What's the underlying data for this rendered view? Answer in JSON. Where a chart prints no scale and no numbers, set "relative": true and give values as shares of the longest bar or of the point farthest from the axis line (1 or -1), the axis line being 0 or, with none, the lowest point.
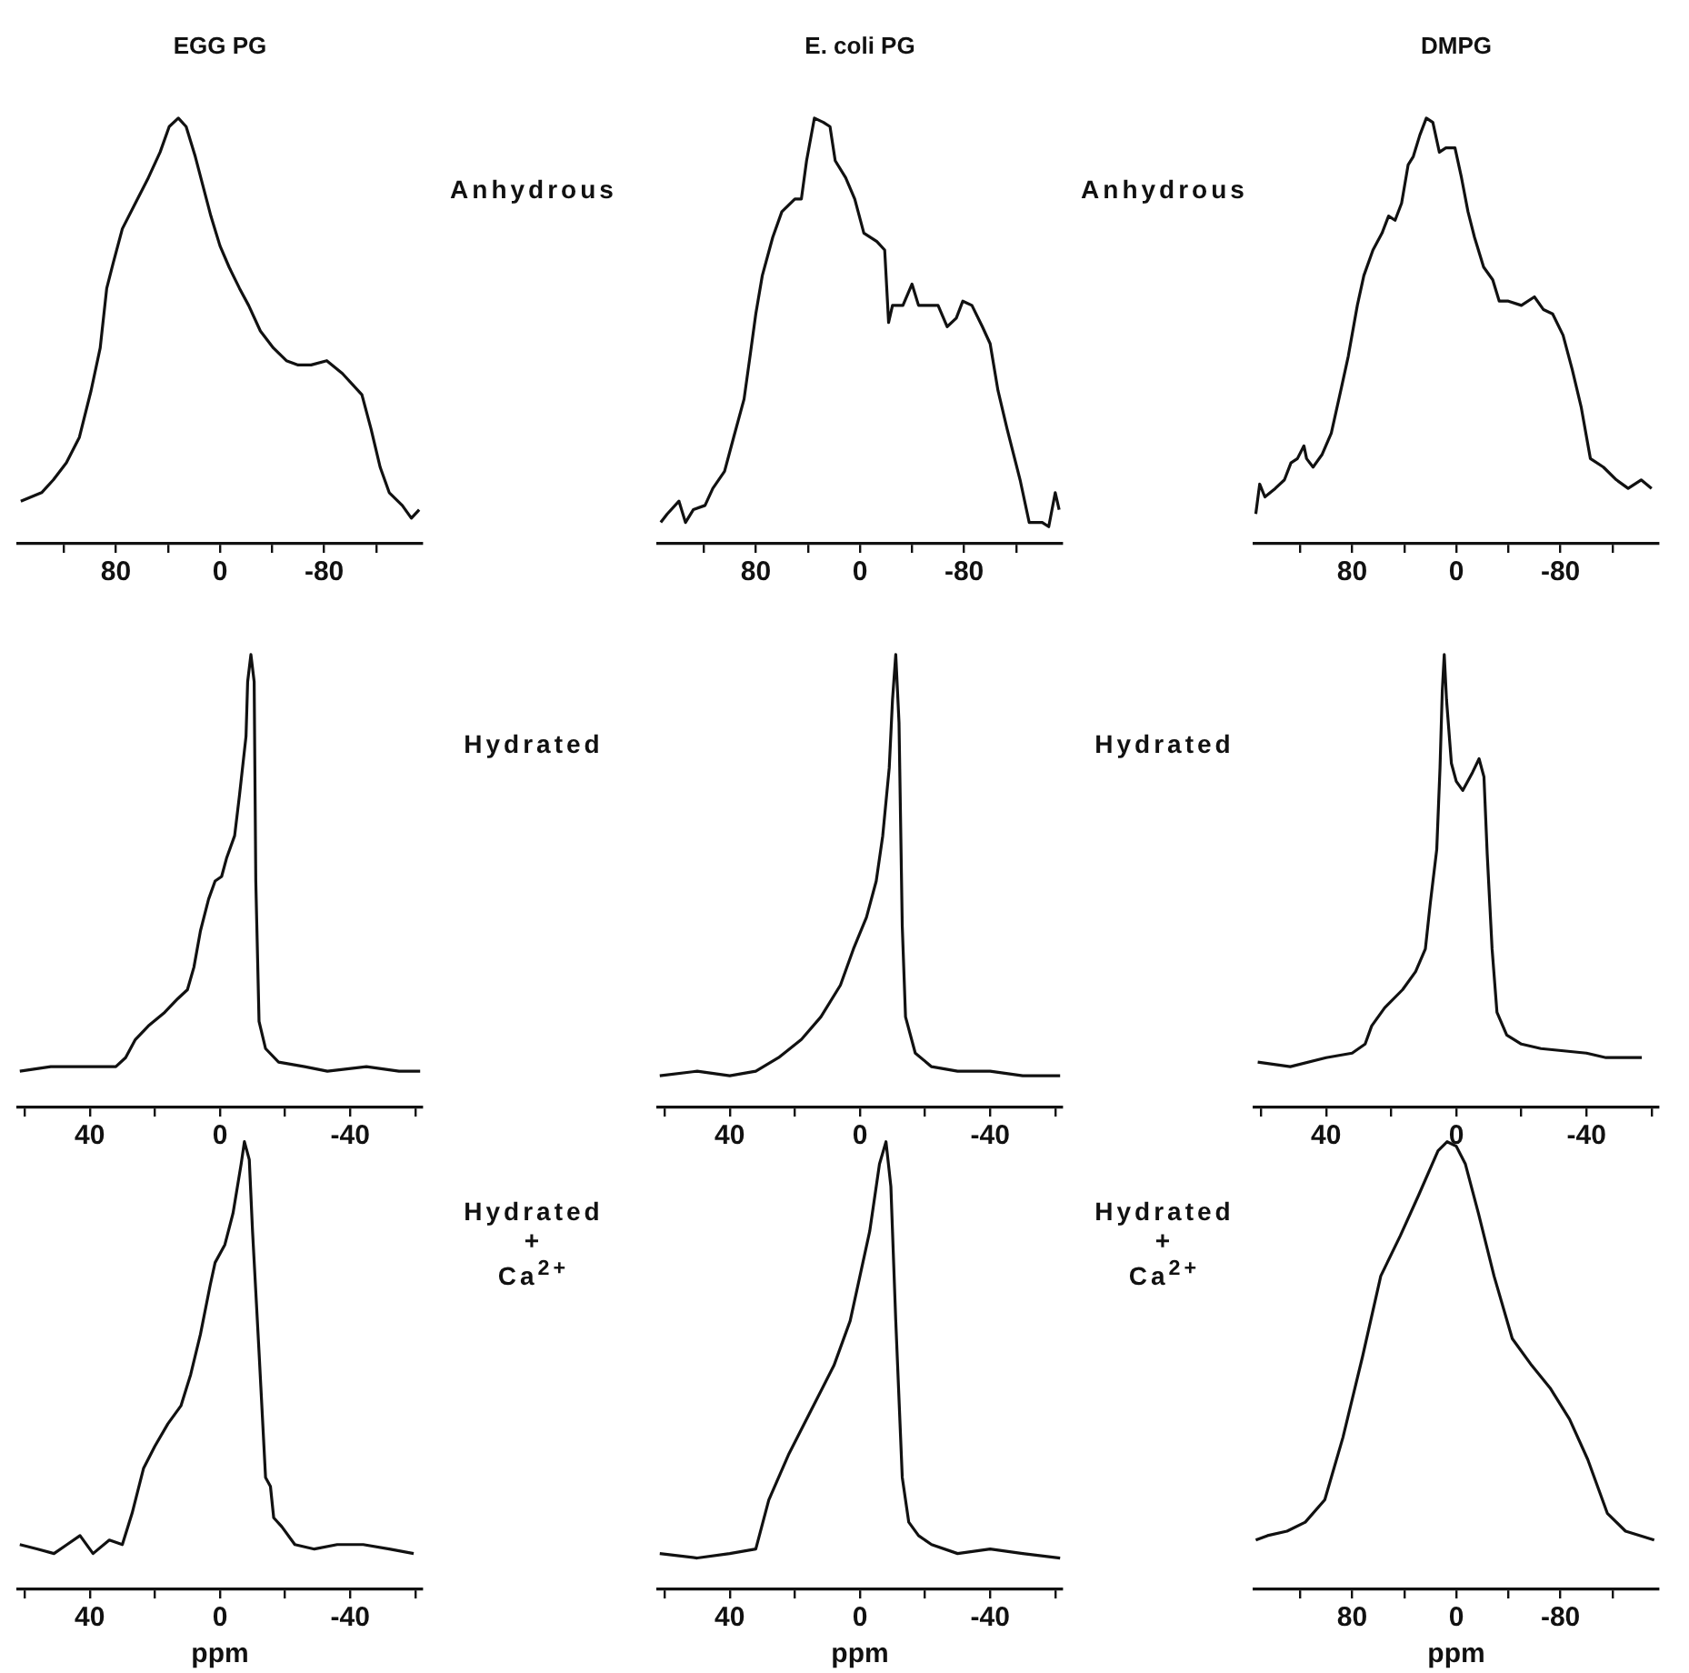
{
  "chart_data": [
    {
      "type": "line",
      "title": "EGG PG",
      "relative": true,
      "marker": "none",
      "xlim": [
        155,
        -155
      ],
      "xticks": [
        {
          "value": 120,
          "label": null
        },
        80,
        {
          "value": 40,
          "label": null
        },
        0,
        {
          "value": -40,
          "label": null
        },
        -80,
        {
          "value": -120,
          "label": null
        }
      ],
      "annotations": [
        "Anhydrous"
      ],
      "x": [
        153,
        137,
        128,
        118,
        108,
        99,
        92,
        87,
        82,
        75,
        65,
        55,
        46,
        39,
        32,
        26,
        19,
        13,
        7,
        0,
        -7,
        -15,
        -22,
        -31,
        -41,
        -51,
        -60,
        -70,
        -82,
        -94,
        -109,
        -116,
        -123,
        -130,
        -140,
        -147,
        -153
      ],
      "series": [
        {
          "color": "#111111",
          "values": [
            0.1,
            0.12,
            0.15,
            0.19,
            0.25,
            0.36,
            0.46,
            0.6,
            0.66,
            0.74,
            0.8,
            0.86,
            0.92,
            0.98,
            1.0,
            0.98,
            0.91,
            0.84,
            0.77,
            0.7,
            0.65,
            0.6,
            0.56,
            0.5,
            0.46,
            0.43,
            0.42,
            0.42,
            0.43,
            0.4,
            0.35,
            0.27,
            0.18,
            0.12,
            0.09,
            0.06,
            0.08
          ]
        }
      ]
    },
    {
      "type": "line",
      "title": "E. coli PG",
      "relative": true,
      "marker": "none",
      "xlim": [
        155,
        -155
      ],
      "xticks": [
        {
          "value": 120,
          "label": null
        },
        80,
        {
          "value": 40,
          "label": null
        },
        0,
        {
          "value": -40,
          "label": null
        },
        -80,
        {
          "value": -120,
          "label": null
        }
      ],
      "annotations": [
        "Anhydrous"
      ],
      "x": [
        153,
        148,
        139,
        134,
        128,
        119,
        113,
        104,
        97,
        89,
        84,
        80,
        75,
        67,
        60,
        50,
        45,
        41,
        35,
        28,
        23,
        19,
        11,
        4,
        -3,
        -13,
        -19,
        -22,
        -25,
        -33,
        -40,
        -45,
        -52,
        -60,
        -67,
        -74,
        -79,
        -86,
        -94,
        -100,
        -106,
        -113,
        -123,
        -130,
        -140,
        -145,
        -150,
        -153
      ],
      "series": [
        {
          "color": "#111111",
          "values": [
            0.05,
            0.07,
            0.1,
            0.05,
            0.08,
            0.09,
            0.13,
            0.17,
            0.25,
            0.34,
            0.45,
            0.54,
            0.63,
            0.72,
            0.78,
            0.81,
            0.81,
            0.9,
            1.0,
            0.99,
            0.98,
            0.9,
            0.86,
            0.81,
            0.73,
            0.71,
            0.69,
            0.52,
            0.56,
            0.56,
            0.61,
            0.56,
            0.56,
            0.56,
            0.51,
            0.53,
            0.57,
            0.56,
            0.51,
            0.47,
            0.36,
            0.27,
            0.15,
            0.05,
            0.05,
            0.04,
            0.12,
            0.08
          ]
        }
      ]
    },
    {
      "type": "line",
      "title": "DMPG",
      "relative": true,
      "marker": "none",
      "xlim": [
        155,
        -155
      ],
      "xticks": [
        {
          "value": 120,
          "label": null
        },
        80,
        {
          "value": 40,
          "label": null
        },
        0,
        {
          "value": -40,
          "label": null
        },
        -80,
        {
          "value": -120,
          "label": null
        }
      ],
      "x": [
        154,
        151,
        147,
        139,
        132,
        127,
        122,
        117,
        115,
        110,
        103,
        96,
        88,
        83,
        76,
        71,
        64,
        57,
        52,
        47,
        42,
        37,
        33,
        28,
        23,
        18,
        13,
        8,
        1,
        -4,
        -9,
        -14,
        -21,
        -28,
        -33,
        -40,
        -50,
        -60,
        -67,
        -74,
        -82,
        -89,
        -96,
        -103,
        -113,
        -123,
        -132,
        -142,
        -150
      ],
      "series": [
        {
          "color": "#111111",
          "values": [
            0.07,
            0.14,
            0.11,
            0.13,
            0.15,
            0.19,
            0.2,
            0.23,
            0.2,
            0.18,
            0.21,
            0.26,
            0.37,
            0.44,
            0.56,
            0.63,
            0.69,
            0.73,
            0.77,
            0.76,
            0.8,
            0.89,
            0.91,
            0.96,
            1.0,
            0.99,
            0.92,
            0.93,
            0.93,
            0.86,
            0.78,
            0.72,
            0.65,
            0.62,
            0.57,
            0.57,
            0.56,
            0.58,
            0.55,
            0.54,
            0.49,
            0.41,
            0.32,
            0.2,
            0.18,
            0.15,
            0.13,
            0.15,
            0.13
          ]
        }
      ]
    },
    {
      "type": "line",
      "relative": true,
      "marker": "none",
      "xlim": [
        62,
        -62
      ],
      "xticks": [
        {
          "value": 60,
          "label": null
        },
        40,
        {
          "value": 20,
          "label": null
        },
        0,
        {
          "value": -20,
          "label": null
        },
        -40,
        {
          "value": -60,
          "label": null
        }
      ],
      "annotations": [
        "Hydrated"
      ],
      "x": [
        61.5,
        52,
        42,
        32,
        29,
        26,
        22,
        17,
        13,
        10,
        8,
        6,
        3.5,
        1.5,
        -0.5,
        -2,
        -4.5,
        -6,
        -8,
        -8.5,
        -9.5,
        -10.5,
        -11,
        -12,
        -14,
        -18,
        -26,
        -33,
        -45,
        -55,
        -61.5
      ],
      "series": [
        {
          "color": "#111111",
          "values": [
            0.08,
            0.09,
            0.09,
            0.09,
            0.11,
            0.15,
            0.18,
            0.21,
            0.24,
            0.26,
            0.31,
            0.39,
            0.46,
            0.5,
            0.51,
            0.55,
            0.6,
            0.69,
            0.82,
            0.94,
            1.0,
            0.94,
            0.5,
            0.19,
            0.13,
            0.1,
            0.09,
            0.08,
            0.09,
            0.08,
            0.08
          ]
        }
      ]
    },
    {
      "type": "line",
      "relative": true,
      "marker": "none",
      "xlim": [
        62,
        -62
      ],
      "xticks": [
        {
          "value": 60,
          "label": null
        },
        40,
        {
          "value": 20,
          "label": null
        },
        0,
        {
          "value": -20,
          "label": null
        },
        -40,
        {
          "value": -60,
          "label": null
        }
      ],
      "annotations": [
        "Hydrated"
      ],
      "x": [
        61.5,
        50,
        40,
        32,
        25,
        18,
        12,
        6,
        2,
        -2,
        -5,
        -7,
        -9,
        -10,
        -11,
        -12,
        -13,
        -14,
        -17,
        -22,
        -30,
        -40,
        -50,
        -61.5
      ],
      "series": [
        {
          "color": "#111111",
          "values": [
            0.07,
            0.08,
            0.07,
            0.08,
            0.11,
            0.15,
            0.2,
            0.27,
            0.35,
            0.42,
            0.5,
            0.6,
            0.75,
            0.9,
            1.0,
            0.85,
            0.4,
            0.2,
            0.12,
            0.09,
            0.08,
            0.08,
            0.07,
            0.07
          ]
        }
      ]
    },
    {
      "type": "line",
      "relative": true,
      "marker": "none",
      "xlim": [
        62,
        -62
      ],
      "xticks": [
        {
          "value": 60,
          "label": null
        },
        40,
        {
          "value": 20,
          "label": null
        },
        0,
        {
          "value": -20,
          "label": null
        },
        -40,
        {
          "value": -60,
          "label": null
        }
      ],
      "x": [
        61,
        51,
        40,
        32,
        28,
        26,
        22,
        16.5,
        12.5,
        9.5,
        8,
        6,
        5,
        4.3,
        3.7,
        3,
        1.5,
        0,
        -2,
        -5,
        -7,
        -8.5,
        -9.5,
        -11,
        -12.5,
        -15.5,
        -20,
        -26,
        -40,
        -46,
        -57
      ],
      "series": [
        {
          "color": "#111111",
          "values": [
            0.1,
            0.09,
            0.11,
            0.12,
            0.14,
            0.18,
            0.22,
            0.26,
            0.3,
            0.35,
            0.45,
            0.57,
            0.75,
            0.92,
            1.0,
            0.9,
            0.76,
            0.72,
            0.7,
            0.74,
            0.77,
            0.73,
            0.56,
            0.35,
            0.21,
            0.16,
            0.14,
            0.13,
            0.12,
            0.11,
            0.11
          ]
        }
      ]
    },
    {
      "type": "line",
      "xlabel": "ppm",
      "relative": true,
      "marker": "none",
      "xlim": [
        62,
        -62
      ],
      "xticks": [
        {
          "value": 60,
          "label": null
        },
        40,
        {
          "value": 20,
          "label": null
        },
        0,
        {
          "value": -20,
          "label": null
        },
        -40,
        {
          "value": -60,
          "label": null
        }
      ],
      "annotations": [
        "Hydrated",
        "+",
        "Ca$^{2+}$"
      ],
      "x": [
        61.5,
        56,
        51,
        47,
        43,
        39,
        34,
        30,
        27,
        23.5,
        20,
        16,
        12,
        9,
        6,
        3,
        1.5,
        -1.5,
        -4,
        -6.5,
        -7.5,
        -9,
        -10,
        -12,
        -14,
        -15.5,
        -16.5,
        -19,
        -23,
        -29,
        -36,
        -44,
        -52,
        -59.5
      ],
      "series": [
        {
          "color": "#111111",
          "values": [
            0.1,
            0.09,
            0.08,
            0.1,
            0.12,
            0.08,
            0.11,
            0.1,
            0.17,
            0.27,
            0.32,
            0.37,
            0.41,
            0.48,
            0.57,
            0.68,
            0.73,
            0.77,
            0.84,
            0.95,
            1.0,
            0.96,
            0.8,
            0.53,
            0.25,
            0.23,
            0.16,
            0.14,
            0.1,
            0.09,
            0.1,
            0.1,
            0.09,
            0.08
          ]
        }
      ]
    },
    {
      "type": "line",
      "xlabel": "ppm",
      "relative": true,
      "marker": "none",
      "xlim": [
        62,
        -62
      ],
      "xticks": [
        {
          "value": 60,
          "label": null
        },
        40,
        {
          "value": 20,
          "label": null
        },
        0,
        {
          "value": -20,
          "label": null
        },
        -40,
        {
          "value": -60,
          "label": null
        }
      ],
      "annotations": [
        "Hydrated",
        "+",
        "Ca$^{2+}$"
      ],
      "x": [
        61.5,
        50,
        40,
        32,
        28,
        22,
        15,
        8,
        3,
        0,
        -3,
        -6,
        -8,
        -9.5,
        -11,
        -13,
        -15,
        -18,
        -22,
        -30,
        -40,
        -50,
        -61.5
      ],
      "series": [
        {
          "color": "#111111",
          "values": [
            0.08,
            0.07,
            0.08,
            0.09,
            0.2,
            0.3,
            0.4,
            0.5,
            0.6,
            0.7,
            0.8,
            0.95,
            1.0,
            0.9,
            0.6,
            0.25,
            0.15,
            0.12,
            0.1,
            0.08,
            0.09,
            0.08,
            0.07
          ]
        }
      ]
    },
    {
      "type": "line",
      "xlabel": "ppm",
      "relative": true,
      "marker": "none",
      "xlim": [
        155,
        -155
      ],
      "xticks": [
        {
          "value": 120,
          "label": null
        },
        80,
        {
          "value": 40,
          "label": null
        },
        0,
        {
          "value": -40,
          "label": null
        },
        -80,
        {
          "value": -120,
          "label": null
        }
      ],
      "x": [
        154,
        145,
        130,
        116,
        101,
        87,
        72,
        58,
        43,
        29,
        14,
        7,
        0,
        -7,
        -17,
        -29,
        -43,
        -58,
        -72,
        -87,
        -101,
        -116,
        -130,
        -152
      ],
      "series": [
        {
          "color": "#111111",
          "values": [
            0.11,
            0.12,
            0.13,
            0.15,
            0.2,
            0.34,
            0.52,
            0.7,
            0.79,
            0.88,
            0.98,
            1.0,
            0.99,
            0.95,
            0.84,
            0.7,
            0.56,
            0.5,
            0.45,
            0.38,
            0.29,
            0.17,
            0.13,
            0.11
          ]
        }
      ]
    }
  ]
}
